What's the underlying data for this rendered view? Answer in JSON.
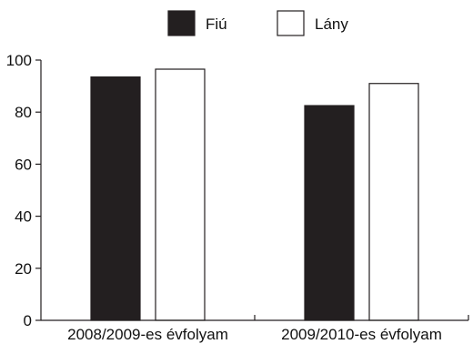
{
  "chart_data": {
    "type": "bar",
    "title": "",
    "xlabel": "",
    "ylabel": "",
    "categories": [
      "2008/2009-es évfolyam",
      "2009/2010-es évfolyam"
    ],
    "series": [
      {
        "name": "Fiú",
        "values": [
          93.5,
          82.5
        ],
        "color": "#231f20"
      },
      {
        "name": "Lány",
        "values": [
          96.5,
          91
        ],
        "color": "#ffffff"
      }
    ],
    "ylim": [
      0,
      100
    ],
    "yticks": [
      "0",
      "20",
      "40",
      "60",
      "80",
      "100"
    ],
    "grid": false,
    "legend_position": "top-center",
    "bar_outline_color": "#231f20",
    "axis_color": "#231f20"
  }
}
